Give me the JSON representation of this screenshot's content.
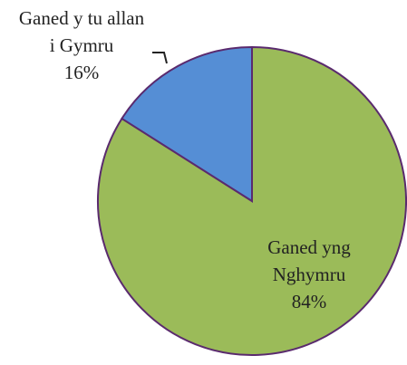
{
  "chart_data": {
    "type": "pie",
    "categories": [
      "Ganed yng Nghymru",
      "Ganed y tu allan i Gymru"
    ],
    "values": [
      84,
      16
    ],
    "value_labels": [
      "84%",
      "16%"
    ],
    "colors": [
      "#9bbb59",
      "#558ed5"
    ],
    "start_angle": 0,
    "direction": "clockwise"
  }
}
